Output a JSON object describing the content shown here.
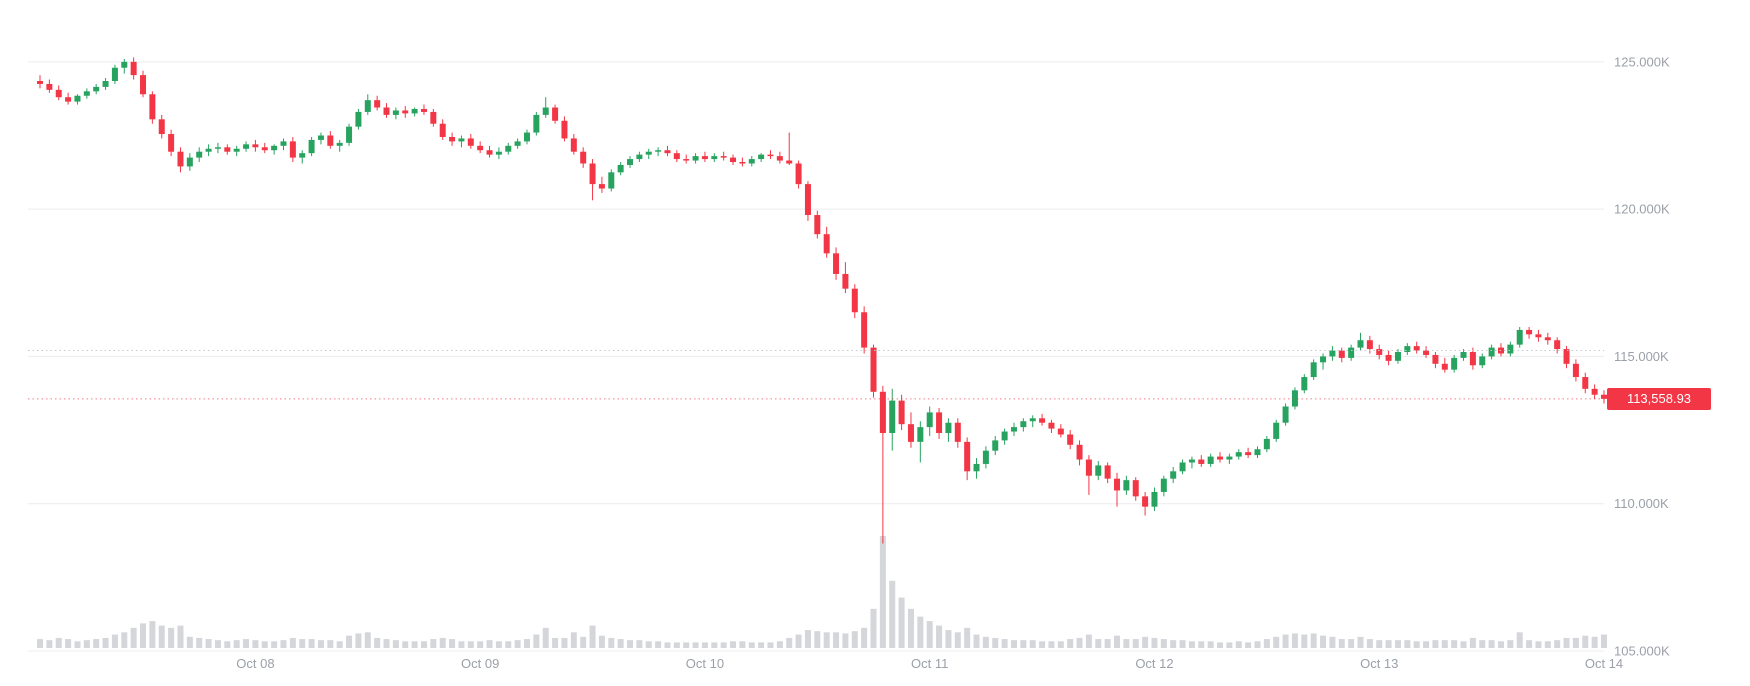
{
  "chart_data": {
    "type": "candlestick",
    "title": "",
    "grid": true,
    "legend_position": "none",
    "colors": {
      "up": "#27a35f",
      "down": "#f23645",
      "volume": "#d4d6da",
      "grid": "#ebecee",
      "axis_text": "#9ba0a8",
      "dashed_level": "#c6c8cd",
      "price_badge_bg": "#f23645",
      "price_badge_text": "#ffffff",
      "background": "#ffffff"
    },
    "price_axis": {
      "unit": "thousands",
      "range": [
        105,
        127.1
      ],
      "labels": [
        {
          "price": 125,
          "text": "125.000K"
        },
        {
          "price": 120,
          "text": "120.000K"
        },
        {
          "price": 115,
          "text": "115.000K"
        },
        {
          "price": 110,
          "text": "110.000K"
        },
        {
          "price": 105,
          "text": "105.000K"
        }
      ]
    },
    "time_axis": {
      "labels": [
        {
          "index": 23,
          "text": "Oct 08"
        },
        {
          "index": 47,
          "text": "Oct 09"
        },
        {
          "index": 71,
          "text": "Oct 10"
        },
        {
          "index": 95,
          "text": "Oct 11"
        },
        {
          "index": 119,
          "text": "Oct 12"
        },
        {
          "index": 143,
          "text": "Oct 13"
        },
        {
          "index": 167,
          "text": "Oct 14"
        }
      ]
    },
    "dashed_levels": [
      115.2
    ],
    "last_price": {
      "value": 113.55893,
      "text": "113,558.93",
      "direction": "down"
    },
    "candles_format": [
      "open",
      "high",
      "low",
      "close",
      "volume"
    ],
    "candles": [
      [
        124.35,
        124.55,
        124.1,
        124.25,
        8
      ],
      [
        124.25,
        124.4,
        123.95,
        124.05,
        7
      ],
      [
        124.05,
        124.2,
        123.7,
        123.8,
        9
      ],
      [
        123.8,
        123.95,
        123.55,
        123.65,
        8
      ],
      [
        123.65,
        123.9,
        123.55,
        123.85,
        6
      ],
      [
        123.85,
        124.1,
        123.75,
        124.0,
        7
      ],
      [
        124.0,
        124.25,
        123.9,
        124.15,
        8
      ],
      [
        124.15,
        124.45,
        124.05,
        124.35,
        9
      ],
      [
        124.35,
        124.9,
        124.25,
        124.8,
        12
      ],
      [
        124.8,
        125.1,
        124.6,
        125.0,
        14
      ],
      [
        125.0,
        125.15,
        124.4,
        124.55,
        18
      ],
      [
        124.55,
        124.7,
        123.8,
        123.9,
        22
      ],
      [
        123.9,
        124.0,
        122.9,
        123.05,
        24
      ],
      [
        123.05,
        123.2,
        122.4,
        122.55,
        20
      ],
      [
        122.55,
        122.7,
        121.8,
        121.95,
        18
      ],
      [
        121.95,
        122.1,
        121.25,
        121.45,
        20
      ],
      [
        121.45,
        121.9,
        121.3,
        121.75,
        10
      ],
      [
        121.75,
        122.1,
        121.6,
        121.95,
        9
      ],
      [
        121.95,
        122.2,
        121.8,
        122.05,
        8
      ],
      [
        122.05,
        122.25,
        121.9,
        122.1,
        7
      ],
      [
        122.1,
        122.2,
        121.85,
        121.95,
        6
      ],
      [
        121.95,
        122.15,
        121.8,
        122.05,
        7
      ],
      [
        122.05,
        122.3,
        121.95,
        122.2,
        8
      ],
      [
        122.2,
        122.35,
        121.95,
        122.1,
        7
      ],
      [
        122.1,
        122.25,
        121.9,
        122.0,
        6
      ],
      [
        122.0,
        122.2,
        121.85,
        122.15,
        6
      ],
      [
        122.15,
        122.4,
        122.0,
        122.3,
        7
      ],
      [
        122.3,
        122.45,
        121.6,
        121.75,
        9
      ],
      [
        121.75,
        122.0,
        121.55,
        121.9,
        8
      ],
      [
        121.9,
        122.45,
        121.8,
        122.35,
        8
      ],
      [
        122.35,
        122.6,
        122.2,
        122.5,
        7
      ],
      [
        122.5,
        122.65,
        122.05,
        122.15,
        7
      ],
      [
        122.15,
        122.35,
        121.95,
        122.25,
        6
      ],
      [
        122.25,
        122.9,
        122.15,
        122.8,
        11
      ],
      [
        122.8,
        123.4,
        122.7,
        123.3,
        13
      ],
      [
        123.3,
        123.9,
        123.2,
        123.7,
        14
      ],
      [
        123.7,
        123.85,
        123.35,
        123.45,
        9
      ],
      [
        123.45,
        123.6,
        123.1,
        123.2,
        8
      ],
      [
        123.2,
        123.45,
        123.05,
        123.35,
        7
      ],
      [
        123.35,
        123.5,
        123.1,
        123.25,
        6
      ],
      [
        123.25,
        123.45,
        123.15,
        123.4,
        6
      ],
      [
        123.4,
        123.55,
        123.2,
        123.3,
        6
      ],
      [
        123.3,
        123.4,
        122.8,
        122.9,
        8
      ],
      [
        122.9,
        123.05,
        122.35,
        122.45,
        9
      ],
      [
        122.45,
        122.6,
        122.15,
        122.3,
        8
      ],
      [
        122.3,
        122.5,
        122.1,
        122.4,
        6
      ],
      [
        122.4,
        122.55,
        122.05,
        122.15,
        6
      ],
      [
        122.15,
        122.3,
        121.9,
        122.0,
        6
      ],
      [
        122.0,
        122.15,
        121.75,
        121.85,
        7
      ],
      [
        121.85,
        122.1,
        121.7,
        121.95,
        6
      ],
      [
        121.95,
        122.25,
        121.85,
        122.15,
        6
      ],
      [
        122.15,
        122.4,
        122.05,
        122.3,
        7
      ],
      [
        122.3,
        122.7,
        122.2,
        122.6,
        8
      ],
      [
        122.6,
        123.3,
        122.5,
        123.2,
        12
      ],
      [
        123.2,
        123.8,
        123.1,
        123.45,
        18
      ],
      [
        123.45,
        123.55,
        122.9,
        123.0,
        9
      ],
      [
        123.0,
        123.15,
        122.3,
        122.4,
        9
      ],
      [
        122.4,
        122.55,
        121.85,
        121.95,
        14
      ],
      [
        121.95,
        122.1,
        121.4,
        121.55,
        10
      ],
      [
        121.55,
        121.7,
        120.3,
        120.85,
        20
      ],
      [
        120.85,
        121.1,
        120.55,
        120.7,
        11
      ],
      [
        120.7,
        121.35,
        120.6,
        121.25,
        9
      ],
      [
        121.25,
        121.6,
        121.15,
        121.5,
        8
      ],
      [
        121.5,
        121.8,
        121.4,
        121.7,
        7
      ],
      [
        121.7,
        121.95,
        121.6,
        121.85,
        7
      ],
      [
        121.85,
        122.05,
        121.7,
        121.95,
        6
      ],
      [
        121.95,
        122.1,
        121.8,
        122.0,
        6
      ],
      [
        122.0,
        122.15,
        121.8,
        121.9,
        5
      ],
      [
        121.9,
        122.0,
        121.6,
        121.7,
        5
      ],
      [
        121.7,
        121.85,
        121.55,
        121.65,
        5
      ],
      [
        121.65,
        121.9,
        121.55,
        121.8,
        5
      ],
      [
        121.8,
        121.95,
        121.6,
        121.7,
        5
      ],
      [
        121.7,
        121.9,
        121.6,
        121.8,
        5
      ],
      [
        121.8,
        121.95,
        121.65,
        121.75,
        5
      ],
      [
        121.75,
        121.85,
        121.5,
        121.6,
        6
      ],
      [
        121.6,
        121.75,
        121.45,
        121.55,
        6
      ],
      [
        121.55,
        121.8,
        121.45,
        121.7,
        5
      ],
      [
        121.7,
        121.9,
        121.6,
        121.85,
        5
      ],
      [
        121.85,
        122.0,
        121.7,
        121.8,
        5
      ],
      [
        121.8,
        121.95,
        121.55,
        121.65,
        6
      ],
      [
        121.65,
        122.6,
        121.5,
        121.55,
        9
      ],
      [
        121.55,
        121.65,
        120.7,
        120.85,
        12
      ],
      [
        120.85,
        120.95,
        119.6,
        119.8,
        16
      ],
      [
        119.8,
        119.95,
        119.0,
        119.15,
        15
      ],
      [
        119.15,
        119.4,
        118.35,
        118.5,
        14
      ],
      [
        118.5,
        118.7,
        117.6,
        117.8,
        14
      ],
      [
        117.8,
        118.2,
        117.15,
        117.3,
        13
      ],
      [
        117.3,
        117.45,
        116.3,
        116.5,
        15
      ],
      [
        116.5,
        116.7,
        115.1,
        115.3,
        18
      ],
      [
        115.3,
        115.4,
        113.6,
        113.8,
        35
      ],
      [
        113.8,
        114.0,
        108.65,
        112.4,
        100
      ],
      [
        112.4,
        113.9,
        111.8,
        113.5,
        60
      ],
      [
        113.5,
        113.7,
        112.5,
        112.7,
        45
      ],
      [
        112.7,
        113.1,
        111.9,
        112.1,
        35
      ],
      [
        112.1,
        112.8,
        111.4,
        112.6,
        28
      ],
      [
        112.6,
        113.3,
        112.3,
        113.1,
        24
      ],
      [
        113.1,
        113.25,
        112.2,
        112.4,
        20
      ],
      [
        112.4,
        112.9,
        112.1,
        112.75,
        16
      ],
      [
        112.75,
        112.9,
        111.9,
        112.1,
        14
      ],
      [
        112.1,
        112.25,
        110.8,
        111.1,
        18
      ],
      [
        111.1,
        111.55,
        110.85,
        111.35,
        12
      ],
      [
        111.35,
        111.95,
        111.2,
        111.8,
        10
      ],
      [
        111.8,
        112.3,
        111.65,
        112.15,
        9
      ],
      [
        112.15,
        112.55,
        112.0,
        112.45,
        8
      ],
      [
        112.45,
        112.75,
        112.3,
        112.6,
        7
      ],
      [
        112.6,
        112.9,
        112.45,
        112.8,
        7
      ],
      [
        112.8,
        113.0,
        112.6,
        112.9,
        7
      ],
      [
        112.9,
        113.05,
        112.65,
        112.75,
        6
      ],
      [
        112.75,
        112.85,
        112.4,
        112.55,
        6
      ],
      [
        112.55,
        112.7,
        112.25,
        112.35,
        6
      ],
      [
        112.35,
        112.5,
        111.85,
        112.0,
        8
      ],
      [
        112.0,
        112.15,
        111.3,
        111.5,
        9
      ],
      [
        111.5,
        111.65,
        110.3,
        110.95,
        12
      ],
      [
        110.95,
        111.45,
        110.8,
        111.3,
        8
      ],
      [
        111.3,
        111.4,
        110.7,
        110.85,
        8
      ],
      [
        110.85,
        111.05,
        109.9,
        110.45,
        11
      ],
      [
        110.45,
        110.95,
        110.3,
        110.8,
        8
      ],
      [
        110.8,
        110.9,
        110.1,
        110.25,
        8
      ],
      [
        110.25,
        110.4,
        109.6,
        109.9,
        10
      ],
      [
        109.9,
        110.55,
        109.75,
        110.4,
        9
      ],
      [
        110.4,
        110.95,
        110.25,
        110.85,
        8
      ],
      [
        110.85,
        111.25,
        110.7,
        111.1,
        7
      ],
      [
        111.1,
        111.5,
        111.0,
        111.4,
        7
      ],
      [
        111.4,
        111.6,
        111.2,
        111.5,
        6
      ],
      [
        111.5,
        111.65,
        111.25,
        111.35,
        6
      ],
      [
        111.35,
        111.7,
        111.25,
        111.6,
        6
      ],
      [
        111.6,
        111.75,
        111.4,
        111.5,
        5
      ],
      [
        111.5,
        111.7,
        111.35,
        111.6,
        5
      ],
      [
        111.6,
        111.85,
        111.5,
        111.75,
        6
      ],
      [
        111.75,
        111.9,
        111.55,
        111.65,
        5
      ],
      [
        111.65,
        111.95,
        111.55,
        111.85,
        6
      ],
      [
        111.85,
        112.3,
        111.75,
        112.2,
        8
      ],
      [
        112.2,
        112.85,
        112.1,
        112.75,
        10
      ],
      [
        112.75,
        113.4,
        112.65,
        113.3,
        12
      ],
      [
        113.3,
        113.95,
        113.2,
        113.85,
        13
      ],
      [
        113.85,
        114.4,
        113.75,
        114.3,
        12
      ],
      [
        114.3,
        114.9,
        114.2,
        114.8,
        13
      ],
      [
        114.8,
        115.1,
        114.55,
        115.0,
        11
      ],
      [
        115.0,
        115.35,
        114.85,
        115.2,
        10
      ],
      [
        115.2,
        115.3,
        114.8,
        114.95,
        8
      ],
      [
        114.95,
        115.4,
        114.85,
        115.3,
        8
      ],
      [
        115.3,
        115.8,
        115.2,
        115.55,
        10
      ],
      [
        115.55,
        115.7,
        115.1,
        115.25,
        8
      ],
      [
        115.25,
        115.4,
        114.9,
        115.05,
        7
      ],
      [
        115.05,
        115.2,
        114.7,
        114.85,
        7
      ],
      [
        114.85,
        115.25,
        114.75,
        115.15,
        7
      ],
      [
        115.15,
        115.45,
        115.05,
        115.35,
        7
      ],
      [
        115.35,
        115.5,
        115.1,
        115.2,
        6
      ],
      [
        115.2,
        115.35,
        114.95,
        115.05,
        6
      ],
      [
        115.05,
        115.15,
        114.6,
        114.75,
        7
      ],
      [
        114.75,
        114.95,
        114.45,
        114.55,
        7
      ],
      [
        114.55,
        115.05,
        114.45,
        114.95,
        7
      ],
      [
        114.95,
        115.25,
        114.85,
        115.15,
        6
      ],
      [
        115.15,
        115.3,
        114.55,
        114.7,
        9
      ],
      [
        114.7,
        115.1,
        114.6,
        115.0,
        7
      ],
      [
        115.0,
        115.4,
        114.9,
        115.3,
        7
      ],
      [
        115.3,
        115.45,
        115.0,
        115.1,
        6
      ],
      [
        115.1,
        115.5,
        115.0,
        115.4,
        7
      ],
      [
        115.4,
        116.0,
        115.3,
        115.9,
        14
      ],
      [
        115.9,
        116.0,
        115.6,
        115.75,
        7
      ],
      [
        115.75,
        115.9,
        115.5,
        115.65,
        6
      ],
      [
        115.65,
        115.8,
        115.4,
        115.55,
        6
      ],
      [
        115.55,
        115.65,
        115.1,
        115.25,
        7
      ],
      [
        115.25,
        115.35,
        114.6,
        114.75,
        9
      ],
      [
        114.75,
        114.9,
        114.15,
        114.3,
        9
      ],
      [
        114.3,
        114.45,
        113.75,
        113.9,
        11
      ],
      [
        113.9,
        114.05,
        113.55,
        113.7,
        10
      ],
      [
        113.7,
        113.85,
        113.4,
        113.56,
        12
      ]
    ]
  }
}
